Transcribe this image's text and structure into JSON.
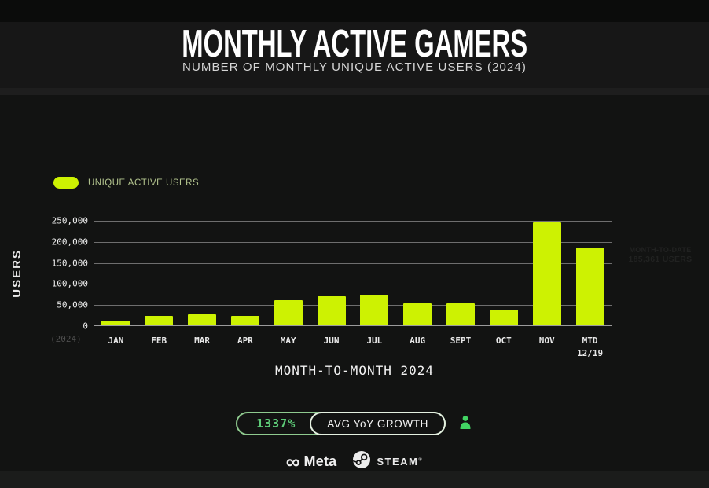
{
  "header": {
    "title": "MONTHLY ACTIVE GAMERS",
    "subtitle": "NUMBER OF MONTHLY UNIQUE ACTIVE USERS (2024)"
  },
  "legend": {
    "label": "UNIQUE ACTIVE USERS"
  },
  "chart_data": {
    "type": "bar",
    "title": "MONTHLY ACTIVE GAMERS",
    "categories": [
      "JAN",
      "FEB",
      "MAR",
      "APR",
      "MAY",
      "JUN",
      "JUL",
      "AUG",
      "SEPT",
      "OCT",
      "NOV",
      "MTD"
    ],
    "category_sublabels": [
      "",
      "",
      "",
      "",
      "",
      "",
      "",
      "",
      "",
      "",
      "",
      "12/19"
    ],
    "values": [
      12000,
      23000,
      27000,
      23000,
      59000,
      70000,
      73000,
      53000,
      53000,
      38000,
      245000,
      185361
    ],
    "series_name": "UNIQUE ACTIVE USERS",
    "xlabel": "MONTH-TO-MONTH 2024",
    "ylabel": "USERS",
    "ylim": [
      0,
      250000
    ],
    "ytick_step": 50000,
    "yticks": [
      "250,000",
      "200,000",
      "150,000",
      "100,000",
      "50,000",
      "0"
    ],
    "x_axis_note": "(2024)",
    "grid": true,
    "legend_position": "top-left",
    "bar_color": "#cdf202",
    "annotation": {
      "line1": "MONTH-TO-DATE",
      "line2": "185,361 USERS"
    }
  },
  "stats_badge": {
    "value": "1337%",
    "label": "AVG YoY GROWTH"
  },
  "footer": {
    "meta_label": "Meta",
    "meta_symbol": "∞",
    "steam_label": "STEAM",
    "steam_trademark": "®"
  },
  "colors": {
    "accent_lime": "#cdf202",
    "background": "#121312",
    "header_background": "#171717",
    "badge_border_outer": "#8fca8f",
    "badge_border_inner": "#e4f0e0",
    "badge_value_text": "#5ecb78",
    "person_icon": "#42d463",
    "gridline": "#6e6e6e",
    "legend_text": "#b3c48e"
  }
}
